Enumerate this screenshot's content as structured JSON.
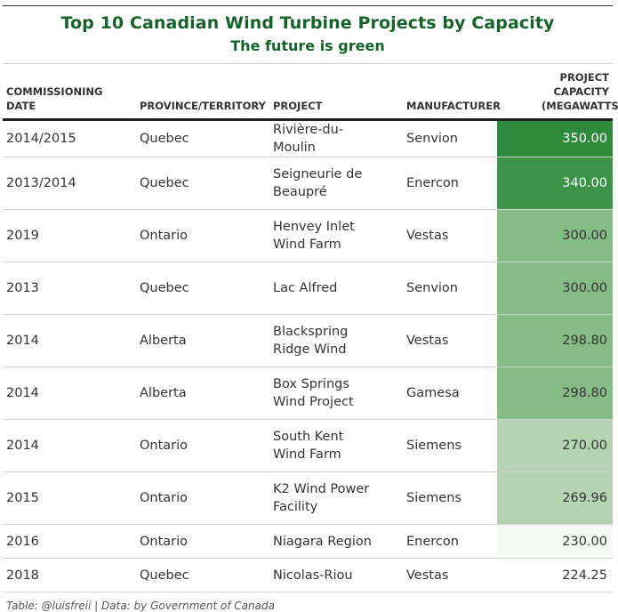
{
  "title": "Top 10 Canadian Wind Turbine Projects by Capacity",
  "subtitle": "The future is green",
  "caption": "Table: @luisfreii | Data: by Government of Canada",
  "colors": {
    "title": "#17612b",
    "scale_low": "#f7fbf6",
    "scale_high": "#2f8a3c"
  },
  "chart_data": {
    "type": "table",
    "columns": [
      "COMMISSIONING DATE",
      "PROVINCE/TERRITORY",
      "PROJECT",
      "MANUFACTURER",
      "PROJECT CAPACITY (MEGAWATTS)"
    ],
    "rows": [
      {
        "date": "2014/2015",
        "province": "Quebec",
        "project": "Rivière-du-Moulin",
        "manufacturer": "Senvion",
        "capacity": "350.00"
      },
      {
        "date": "2013/2014",
        "province": "Quebec",
        "project": "Seigneurie de Beaupré",
        "manufacturer": "Enercon",
        "capacity": "340.00"
      },
      {
        "date": "2019",
        "province": "Ontario",
        "project": "Henvey Inlet Wind Farm",
        "manufacturer": "Vestas",
        "capacity": "300.00"
      },
      {
        "date": "2013",
        "province": "Quebec",
        "project": "Lac Alfred",
        "manufacturer": "Senvion",
        "capacity": "300.00"
      },
      {
        "date": "2014",
        "province": "Alberta",
        "project": "Blackspring Ridge Wind",
        "manufacturer": "Vestas",
        "capacity": "298.80"
      },
      {
        "date": "2014",
        "province": "Alberta",
        "project": "Box Springs Wind Project",
        "manufacturer": "Gamesa",
        "capacity": "298.80"
      },
      {
        "date": "2014",
        "province": "Ontario",
        "project": "South Kent Wind Farm",
        "manufacturer": "Siemens",
        "capacity": "270.00"
      },
      {
        "date": "2015",
        "province": "Ontario",
        "project": "K2 Wind Power Facility",
        "manufacturer": "Siemens",
        "capacity": "269.96"
      },
      {
        "date": "2016",
        "province": "Ontario",
        "project": "Niagara Region",
        "manufacturer": "Enercon",
        "capacity": "230.00"
      },
      {
        "date": "2018",
        "province": "Quebec",
        "project": "Nicolas-Riou",
        "manufacturer": "Vestas",
        "capacity": "224.25"
      }
    ],
    "capacity_fills": [
      "#2e8a3b",
      "#3d9448",
      "#85bb84",
      "#85bb84",
      "#87bc86",
      "#87bc86",
      "#b3d3b1",
      "#b4d4b2",
      "#f4f9f3",
      "#ffffff"
    ]
  }
}
